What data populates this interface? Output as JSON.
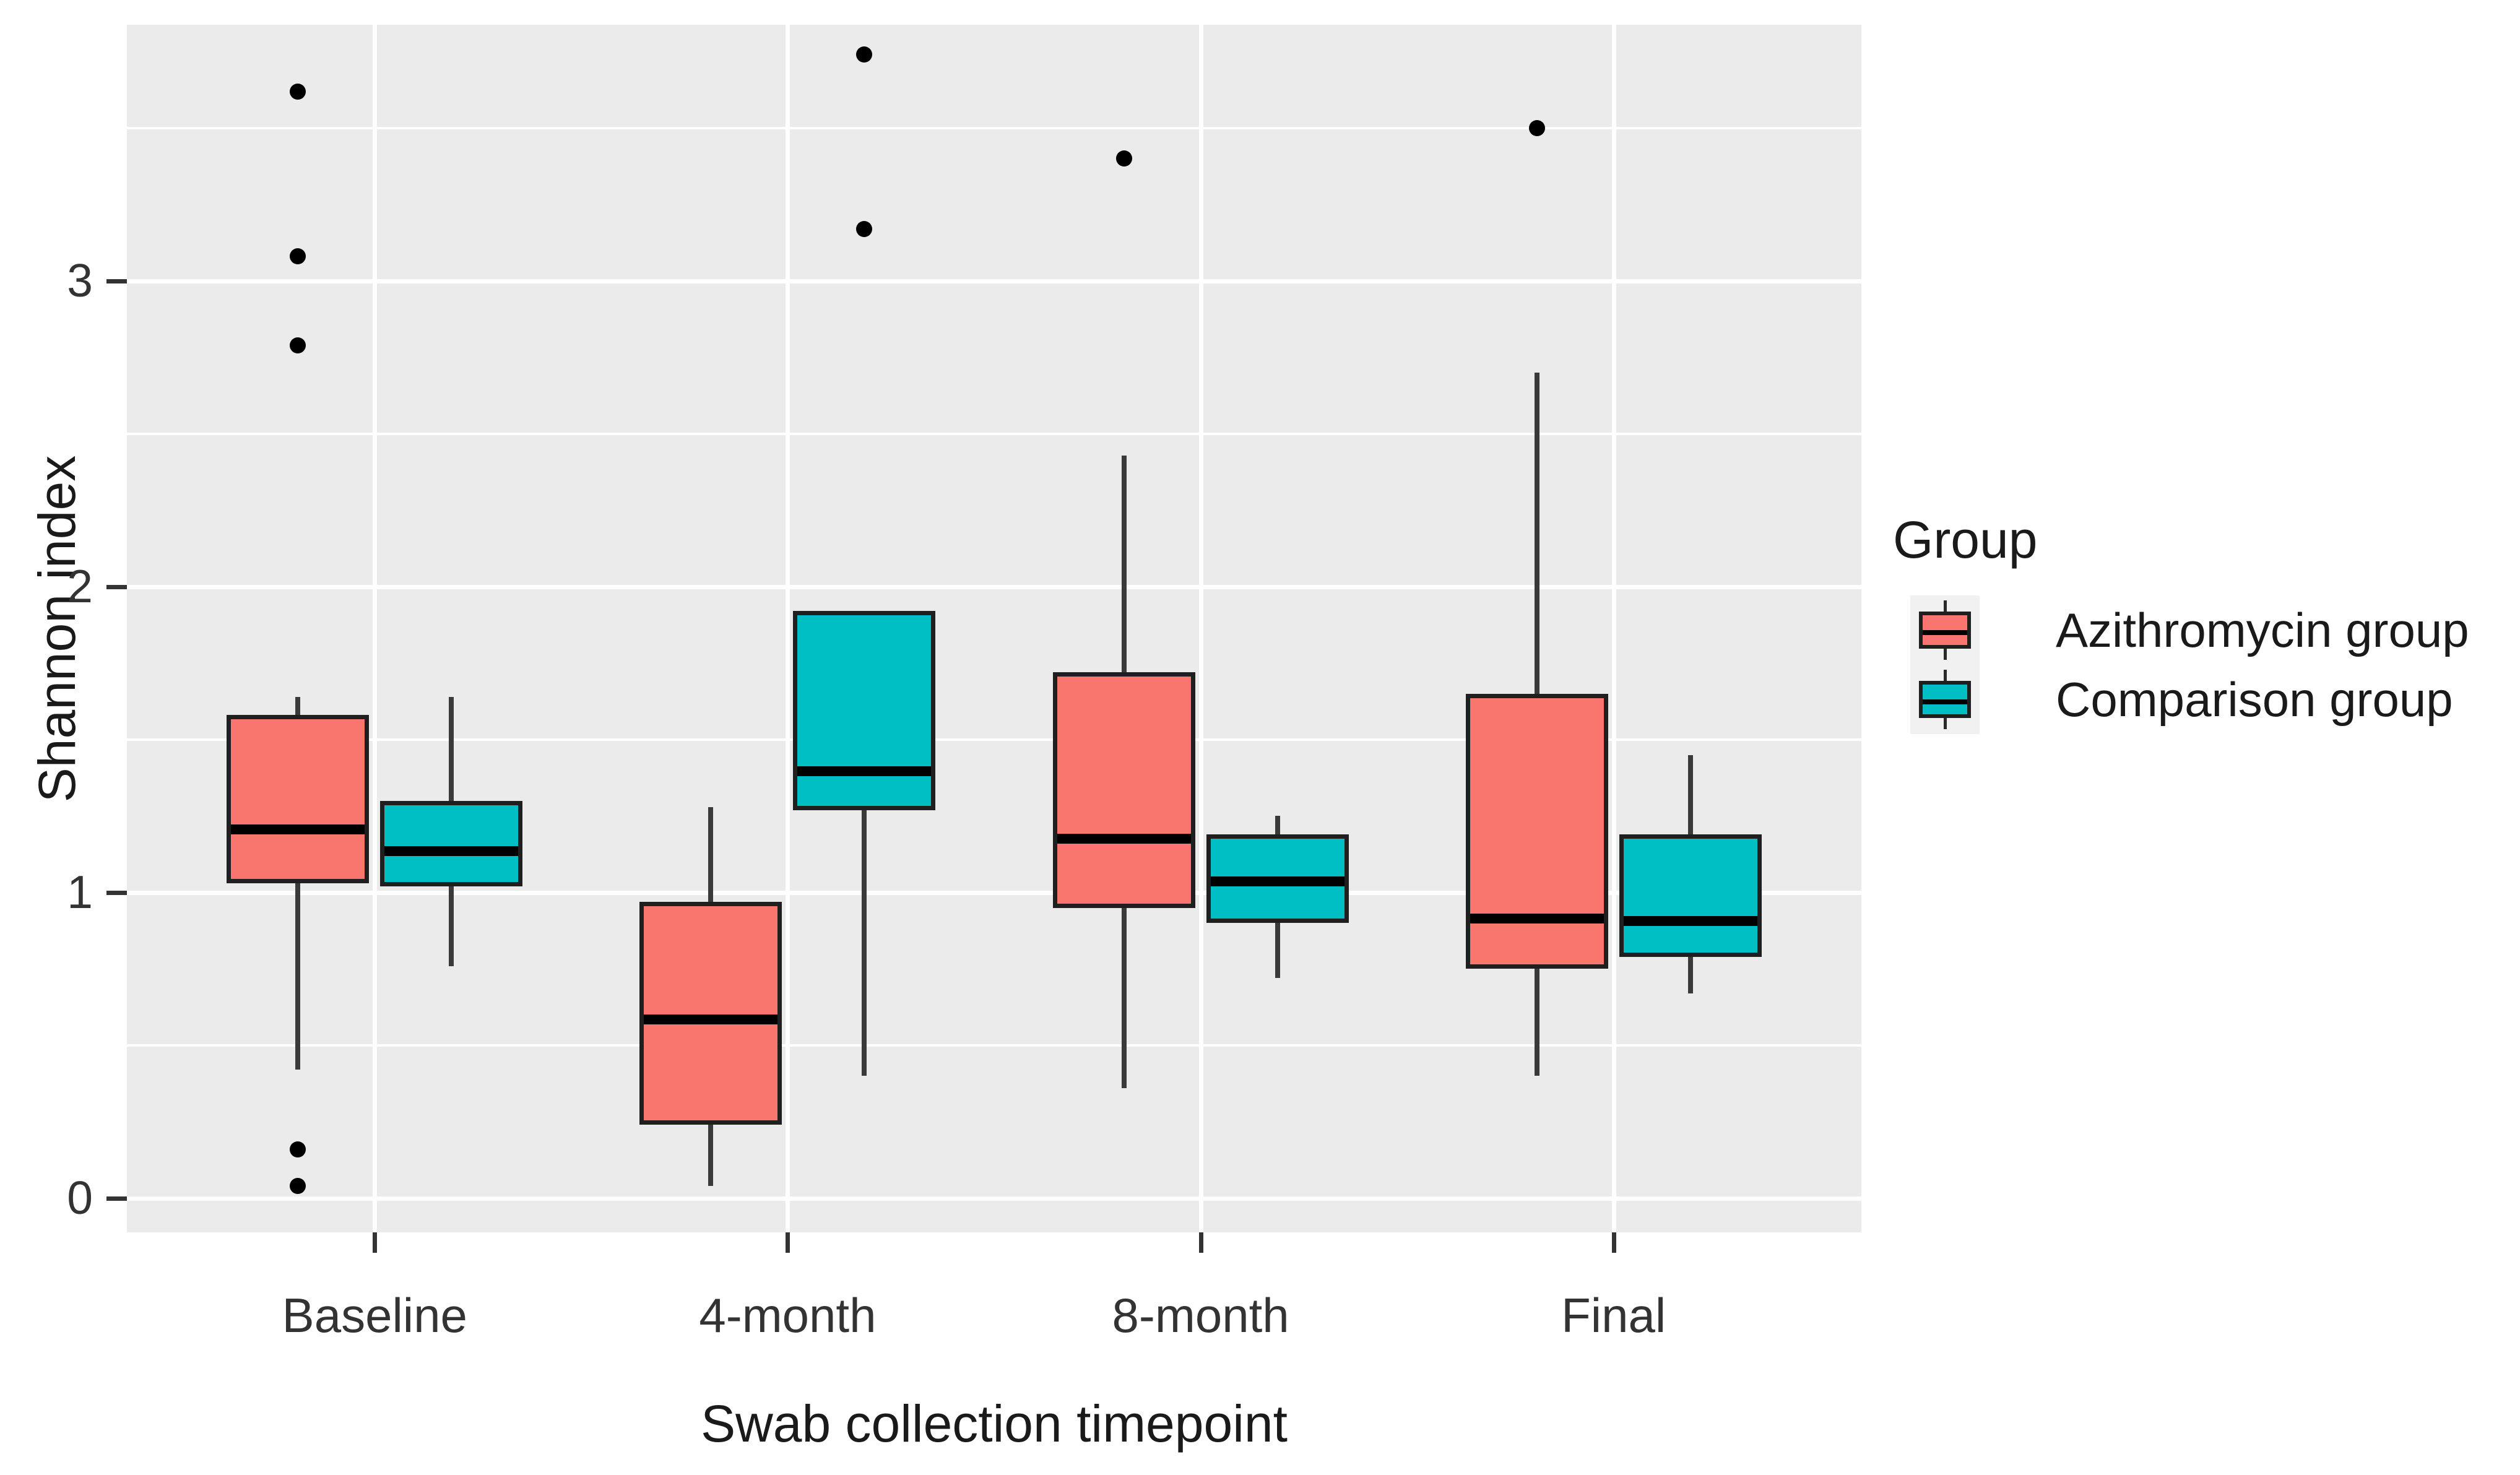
{
  "chart_data": {
    "type": "boxplot",
    "title": "",
    "xlabel": "Swab collection timepoint",
    "ylabel": "Shannon index",
    "categories": [
      "Baseline",
      "4-month",
      "8-month",
      "Final"
    ],
    "y_ticks": [
      "0",
      "1",
      "2",
      "3"
    ],
    "y_tick_values": [
      0,
      1,
      2,
      3
    ],
    "ylim": [
      -0.11,
      3.84
    ],
    "grid": {
      "major": [
        0,
        1,
        2,
        3
      ],
      "minor": [
        0.5,
        1.5,
        2.5,
        3.5
      ],
      "vertical_major_at_categories": true
    },
    "legend": {
      "title": "Group",
      "position": "right",
      "entries": [
        {
          "label": "Azithromycin group",
          "color": "#F8766D"
        },
        {
          "label": "Comparison group",
          "color": "#00BFC4"
        }
      ]
    },
    "series": [
      {
        "name": "Azithromycin group",
        "color": "#F8766D",
        "boxes": [
          {
            "category": "Baseline",
            "whisker_low": 0.42,
            "q1": 1.03,
            "median": 1.22,
            "q3": 1.58,
            "whisker_high": 1.64,
            "outliers": [
              3.62,
              3.08,
              2.79,
              0.16,
              0.04
            ]
          },
          {
            "category": "4-month",
            "whisker_low": 0.04,
            "q1": 0.24,
            "median": 0.6,
            "q3": 0.97,
            "whisker_high": 1.28,
            "outliers": []
          },
          {
            "category": "8-month",
            "whisker_low": 0.36,
            "q1": 0.95,
            "median": 1.19,
            "q3": 1.72,
            "whisker_high": 2.43,
            "outliers": [
              3.4
            ]
          },
          {
            "category": "Final",
            "whisker_low": 0.4,
            "q1": 0.75,
            "median": 0.93,
            "q3": 1.65,
            "whisker_high": 2.7,
            "outliers": [
              3.5
            ]
          }
        ]
      },
      {
        "name": "Comparison group",
        "color": "#00BFC4",
        "boxes": [
          {
            "category": "Baseline",
            "whisker_low": 0.76,
            "q1": 1.02,
            "median": 1.15,
            "q3": 1.3,
            "whisker_high": 1.64,
            "outliers": []
          },
          {
            "category": "4-month",
            "whisker_low": 0.4,
            "q1": 1.27,
            "median": 1.41,
            "q3": 1.92,
            "whisker_high": 1.92,
            "outliers": [
              3.74,
              3.17
            ]
          },
          {
            "category": "8-month",
            "whisker_low": 0.72,
            "q1": 0.9,
            "median": 1.05,
            "q3": 1.19,
            "whisker_high": 1.25,
            "outliers": []
          },
          {
            "category": "Final",
            "whisker_low": 0.67,
            "q1": 0.79,
            "median": 0.92,
            "q3": 1.19,
            "whisker_high": 1.45,
            "outliers": []
          }
        ]
      }
    ]
  },
  "colors": {
    "panel_background": "#EBEBEB",
    "gridline": "#FFFFFF",
    "box_border": "#1F1F1F",
    "median": "#000000",
    "whisker": "#3A3A3A",
    "outlier": "#000000",
    "tick": "#333333",
    "tick_label": "#333333",
    "axis_title": "#1A1A1A",
    "legend_key_background": "#F1F1F1",
    "page_background": "#FFFFFF"
  }
}
